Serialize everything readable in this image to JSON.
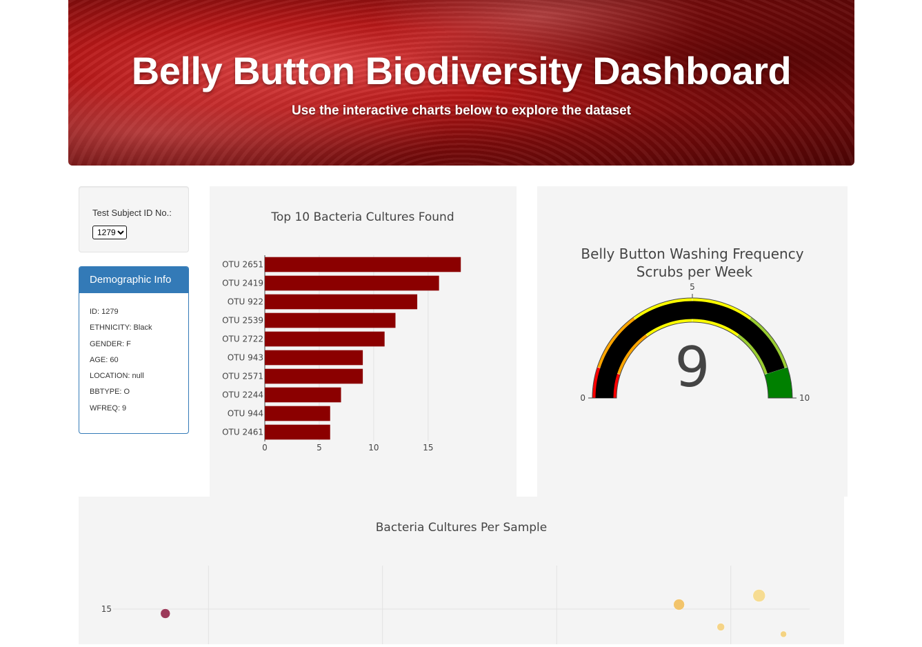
{
  "header": {
    "title": "Belly Button Biodiversity Dashboard",
    "subtitle": "Use the interactive charts below to explore the dataset"
  },
  "selector": {
    "label": "Test Subject ID No.:",
    "selected": "1279"
  },
  "demographics": {
    "heading": "Demographic Info",
    "items": [
      "ID: 1279",
      "ETHNICITY: Black",
      "GENDER: F",
      "AGE: 60",
      "LOCATION: null",
      "BBTYPE: O",
      "WFREQ: 9"
    ]
  },
  "colors": {
    "bar": "#8b0000",
    "panel_blue": "#337ab7",
    "plot_bg": "#f4f4f4",
    "gauge_needle": "#000000"
  },
  "chart_data": [
    {
      "type": "bar",
      "orientation": "horizontal",
      "title": "Top 10 Bacteria Cultures Found",
      "categories": [
        "OTU 2651",
        "OTU 2419",
        "OTU 922",
        "OTU 2539",
        "OTU 2722",
        "OTU 943",
        "OTU 2571",
        "OTU 2244",
        "OTU 944",
        "OTU 2461"
      ],
      "values": [
        18,
        16,
        14,
        12,
        11,
        9,
        9,
        7,
        6,
        6
      ],
      "xlim": [
        0,
        19
      ],
      "xticks": [
        "0",
        "5",
        "10",
        "15"
      ],
      "grid": true
    },
    {
      "type": "gauge",
      "title": "Belly Button Washing Frequency",
      "subtitle": "Scrubs per Week",
      "value": 9,
      "range": [
        0,
        10
      ],
      "tick_labels": [
        "0",
        "5",
        "10"
      ],
      "steps": [
        {
          "range": [
            0,
            1
          ],
          "color": "#ff0000"
        },
        {
          "range": [
            1,
            3
          ],
          "color": "#ffa500"
        },
        {
          "range": [
            3,
            5
          ],
          "color": "#ffff00"
        },
        {
          "range": [
            5,
            7
          ],
          "color": "#ffff00"
        },
        {
          "range": [
            7,
            9
          ],
          "color": "#9acd32"
        },
        {
          "range": [
            9,
            10
          ],
          "color": "#008000"
        }
      ]
    },
    {
      "type": "scatter",
      "title": "Bacteria Cultures Per Sample",
      "yticks": [
        "15"
      ],
      "grid": true,
      "points": [
        {
          "x": 300,
          "y": 14.5,
          "size": 14,
          "color": "#9c3a5a"
        },
        {
          "x": 3250,
          "y": 15.5,
          "size": 16,
          "color": "#f2c46b"
        },
        {
          "x": 3710,
          "y": 16.5,
          "size": 18,
          "color": "#f6dc92"
        },
        {
          "x": 3490,
          "y": 13.0,
          "size": 11,
          "color": "#f5d488"
        },
        {
          "x": 3850,
          "y": 12.2,
          "size": 9,
          "color": "#f4d382"
        }
      ]
    }
  ]
}
